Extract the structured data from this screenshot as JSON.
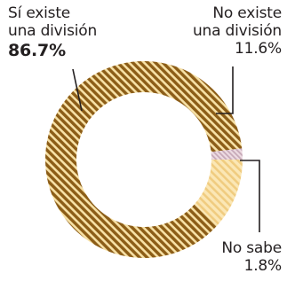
{
  "chart_data": {
    "type": "pie",
    "style": "donut",
    "start_angle_deg": 6.5,
    "direction": "counterclockwise",
    "slices": [
      {
        "label_line1": "Sí existe",
        "label_line2": "una división",
        "value": 86.7,
        "value_label": "86.7%",
        "color": "#8c5d17",
        "fill": "hatched",
        "hatch_bg": "#f7e1a6"
      },
      {
        "label_line1": "No existe",
        "label_line2": "una división",
        "value": 11.6,
        "value_label": "11.6%",
        "color": "#f4d691",
        "fill": "hatched-light",
        "hatch_bg": "#fbe7b5"
      },
      {
        "label_line1": "No sabe",
        "label_line2": "",
        "value": 1.8,
        "value_label": "1.8%",
        "color": "#c9b0be",
        "fill": "hatched-light",
        "hatch_bg": "#eddbe2"
      }
    ]
  }
}
